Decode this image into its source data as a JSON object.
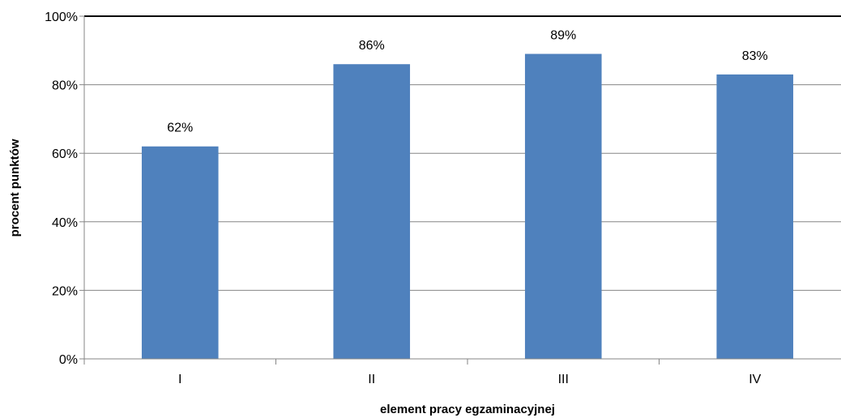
{
  "chart_data": {
    "type": "bar",
    "title": "",
    "xlabel": "element pracy egzaminacyjnej",
    "ylabel": "procent punktów",
    "categories": [
      "I",
      "II",
      "III",
      "IV"
    ],
    "values": [
      62,
      86,
      89,
      83
    ],
    "value_labels": [
      "62%",
      "86%",
      "89%",
      "83%"
    ],
    "ylim": [
      0,
      100
    ],
    "yticks": [
      0,
      20,
      40,
      60,
      80,
      100
    ],
    "ytick_labels": [
      "0%",
      "20%",
      "40%",
      "60%",
      "80%",
      "100%"
    ],
    "grid": true,
    "legend": "none",
    "bar_color": "#4F81BD",
    "grid_color": "#868686",
    "axis_color": "#868686"
  }
}
